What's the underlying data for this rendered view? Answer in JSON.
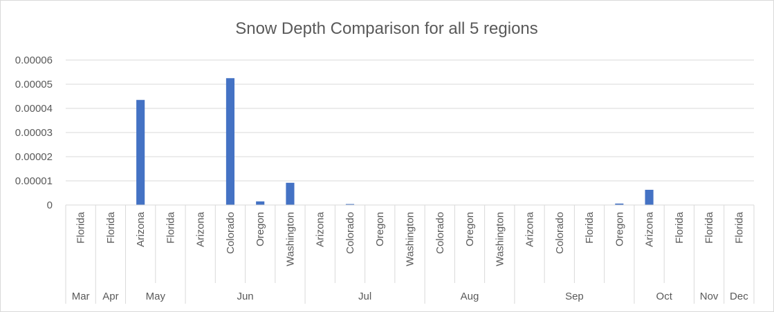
{
  "chart_data": {
    "type": "bar",
    "title": "Snow Depth Comparison for all 5 regions",
    "xlabel": "",
    "ylabel": "",
    "ylim": [
      0,
      6e-05
    ],
    "yticks": [
      "0",
      "0.00001",
      "0.00002",
      "0.00003",
      "0.00004",
      "0.00005",
      "0.00006"
    ],
    "grid": true,
    "legend": "none",
    "bar_color": "#4472c4",
    "groups": [
      {
        "label": "Mar",
        "categories": [
          "Florida"
        ],
        "values": [
          0
        ]
      },
      {
        "label": "Apr",
        "categories": [
          "Florida"
        ],
        "values": [
          0
        ]
      },
      {
        "label": "May",
        "categories": [
          "Arizona",
          "Florida"
        ],
        "values": [
          4.35e-05,
          0
        ]
      },
      {
        "label": "Jun",
        "categories": [
          "Arizona",
          "Colorado",
          "Oregon",
          "Washington"
        ],
        "values": [
          0,
          5.25e-05,
          1.5e-06,
          9.2e-06
        ]
      },
      {
        "label": "Jul",
        "categories": [
          "Arizona",
          "Colorado",
          "Oregon",
          "Washington"
        ],
        "values": [
          0,
          4e-07,
          0,
          0
        ]
      },
      {
        "label": "Aug",
        "categories": [
          "Colorado",
          "Oregon",
          "Washington"
        ],
        "values": [
          0,
          0,
          0
        ]
      },
      {
        "label": "Sep",
        "categories": [
          "Arizona",
          "Colorado",
          "Florida",
          "Oregon"
        ],
        "values": [
          0,
          0,
          0,
          6e-07
        ]
      },
      {
        "label": "Oct",
        "categories": [
          "Arizona",
          "Florida"
        ],
        "values": [
          6.3e-06,
          0
        ]
      },
      {
        "label": "Nov",
        "categories": [
          "Florida"
        ],
        "values": [
          0
        ]
      },
      {
        "label": "Dec",
        "categories": [
          "Florida"
        ],
        "values": [
          0
        ]
      }
    ]
  }
}
